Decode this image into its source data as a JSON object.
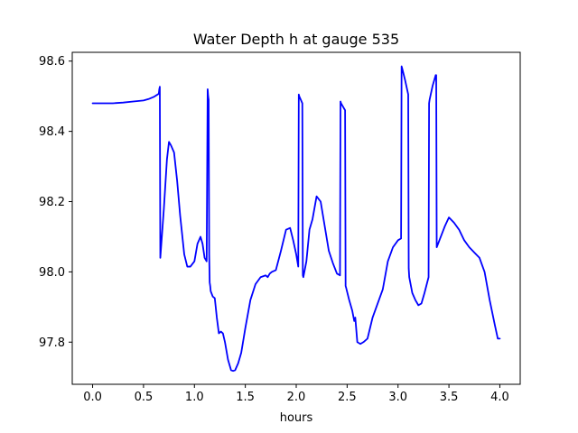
{
  "chart_data": {
    "type": "line",
    "title": "Water Depth h at gauge 535",
    "xlabel": "hours",
    "ylabel": "",
    "xlim": [
      -0.2,
      4.2
    ],
    "ylim": [
      97.68,
      98.625
    ],
    "xticks": [
      0.0,
      0.5,
      1.0,
      1.5,
      2.0,
      2.5,
      3.0,
      3.5,
      4.0
    ],
    "xtick_labels": [
      "0.0",
      "0.5",
      "1.0",
      "1.5",
      "2.0",
      "2.5",
      "3.0",
      "3.5",
      "4.0"
    ],
    "yticks": [
      97.8,
      98.0,
      98.2,
      98.4,
      98.6
    ],
    "ytick_labels": [
      "97.8",
      "98.0",
      "98.2",
      "98.4",
      "98.6"
    ],
    "grid": false,
    "legend": "none",
    "series": [
      {
        "color": "#0000ff",
        "x": [
          0.0,
          0.1,
          0.2,
          0.3,
          0.4,
          0.5,
          0.55,
          0.6,
          0.65,
          0.655,
          0.66,
          0.665,
          0.7,
          0.73,
          0.75,
          0.77,
          0.8,
          0.83,
          0.86,
          0.9,
          0.93,
          0.96,
          1.0,
          1.03,
          1.06,
          1.08,
          1.1,
          1.12,
          1.13,
          1.135,
          1.14,
          1.145,
          1.15,
          1.155,
          1.16,
          1.18,
          1.2,
          1.22,
          1.24,
          1.26,
          1.28,
          1.3,
          1.33,
          1.36,
          1.38,
          1.4,
          1.43,
          1.46,
          1.5,
          1.55,
          1.6,
          1.65,
          1.7,
          1.72,
          1.74,
          1.76,
          1.8,
          1.85,
          1.9,
          1.94,
          1.97,
          2.0,
          2.02,
          2.025,
          2.03,
          2.06,
          2.065,
          2.07,
          2.1,
          2.13,
          2.16,
          2.2,
          2.24,
          2.28,
          2.32,
          2.36,
          2.4,
          2.43,
          2.435,
          2.44,
          2.48,
          2.485,
          2.49,
          2.52,
          2.55,
          2.57,
          2.58,
          2.6,
          2.63,
          2.66,
          2.7,
          2.75,
          2.8,
          2.85,
          2.9,
          2.95,
          3.0,
          3.03,
          3.035,
          3.04,
          3.07,
          3.1,
          3.105,
          3.11,
          3.14,
          3.17,
          3.2,
          3.23,
          3.26,
          3.3,
          3.305,
          3.31,
          3.34,
          3.37,
          3.375,
          3.38,
          3.42,
          3.46,
          3.5,
          3.55,
          3.6,
          3.65,
          3.7,
          3.75,
          3.8,
          3.85,
          3.9,
          3.95,
          3.98,
          4.0
        ],
        "y": [
          98.48,
          98.48,
          98.48,
          98.482,
          98.485,
          98.488,
          98.492,
          98.498,
          98.507,
          98.52,
          98.527,
          98.04,
          98.18,
          98.32,
          98.37,
          98.36,
          98.34,
          98.26,
          98.16,
          98.05,
          98.015,
          98.015,
          98.03,
          98.08,
          98.1,
          98.08,
          98.04,
          98.03,
          98.52,
          98.5,
          98.49,
          98.05,
          97.97,
          97.96,
          97.945,
          97.93,
          97.925,
          97.87,
          97.825,
          97.83,
          97.825,
          97.8,
          97.75,
          97.72,
          97.718,
          97.72,
          97.74,
          97.77,
          97.84,
          97.92,
          97.965,
          97.985,
          97.99,
          97.985,
          97.995,
          98.0,
          98.005,
          98.06,
          98.12,
          98.125,
          98.09,
          98.05,
          98.015,
          98.505,
          98.5,
          98.48,
          97.99,
          97.985,
          98.03,
          98.12,
          98.15,
          98.215,
          98.2,
          98.13,
          98.06,
          98.025,
          97.995,
          97.99,
          98.485,
          98.48,
          98.46,
          97.96,
          97.955,
          97.92,
          97.89,
          97.86,
          97.87,
          97.8,
          97.795,
          97.8,
          97.81,
          97.87,
          97.91,
          97.95,
          98.03,
          98.07,
          98.09,
          98.095,
          98.585,
          98.58,
          98.545,
          98.505,
          98.01,
          97.985,
          97.94,
          97.92,
          97.905,
          97.91,
          97.94,
          97.985,
          98.48,
          98.49,
          98.53,
          98.56,
          98.56,
          98.07,
          98.1,
          98.13,
          98.155,
          98.14,
          98.12,
          98.09,
          98.07,
          98.055,
          98.04,
          98.0,
          97.92,
          97.85,
          97.81,
          97.81
        ]
      }
    ]
  }
}
